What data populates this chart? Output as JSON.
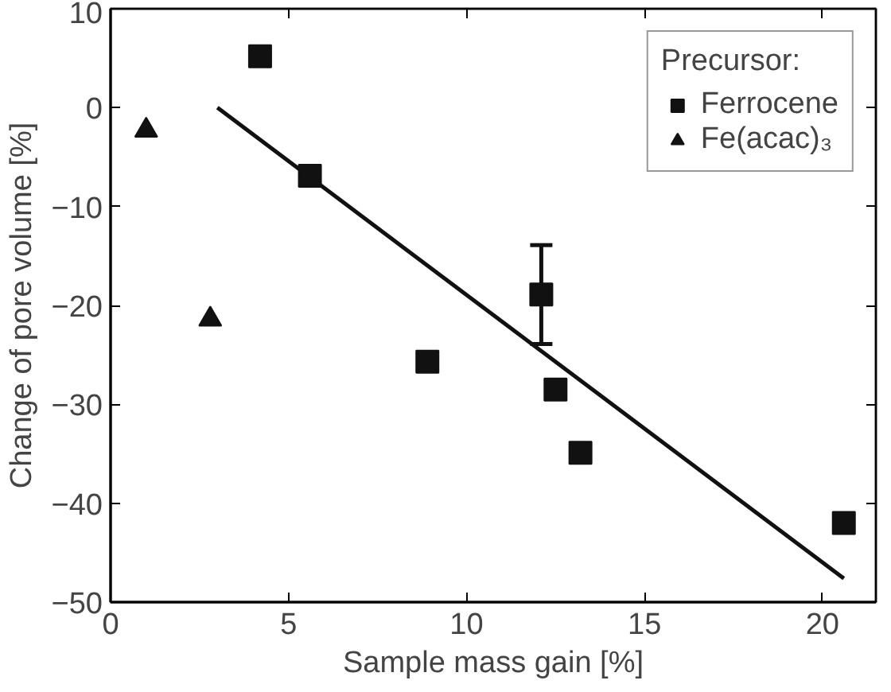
{
  "chart_data": {
    "type": "scatter",
    "xlabel": "Sample mass gain [%]",
    "ylabel": "Change of pore volume [%]",
    "legend_title": "Precursor:",
    "xlim": [
      0,
      21.5
    ],
    "ylim": [
      -50,
      10
    ],
    "xticks": [
      0,
      5,
      10,
      15,
      20
    ],
    "yticks": [
      -50,
      -40,
      -30,
      -20,
      -10,
      0,
      10
    ],
    "grid": false,
    "legend": "top right",
    "series": [
      {
        "name": "Ferrocene",
        "color": "#111111",
        "marker": "square",
        "x": [
          4.2,
          5.6,
          8.9,
          12.1,
          12.5,
          13.2,
          20.6
        ],
        "values": [
          5.2,
          -6.9,
          -25.7,
          -18.9,
          -28.5,
          -34.9,
          -42.0
        ],
        "errors": [
          null,
          null,
          null,
          5,
          null,
          null,
          null
        ]
      },
      {
        "name": "Fe(acac)₃",
        "color": "#111111",
        "marker": "triangle",
        "x": [
          1.0,
          2.8
        ],
        "values": [
          -2.3,
          -21.4
        ]
      },
      {
        "type": "line",
        "color": "#111111",
        "line_style": "solid",
        "x": [
          3.0,
          20.6
        ],
        "values": [
          0,
          -47.6
        ]
      }
    ]
  }
}
